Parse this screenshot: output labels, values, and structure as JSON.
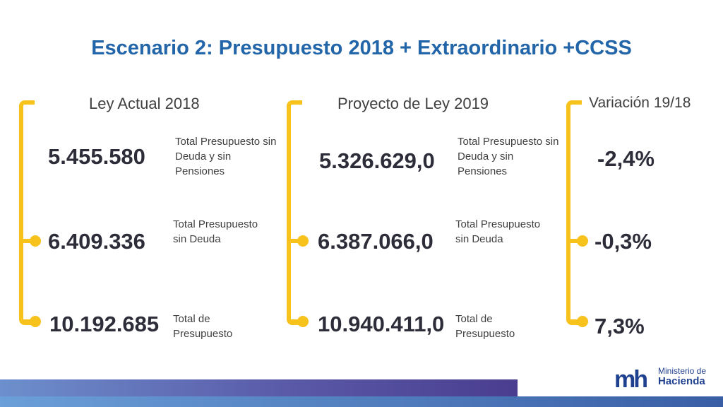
{
  "title": "Escenario 2: Presupuesto 2018 + Extraordinario +CCSS",
  "columns": [
    {
      "heading": "Ley Actual  2018",
      "rows": [
        {
          "value": "5.455.580",
          "label": "Total Presupuesto sin Deuda y sin Pensiones"
        },
        {
          "value": "6.409.336",
          "label": "Total Presupuesto sin Deuda"
        },
        {
          "value": "10.192.685",
          "label": "Total de Presupuesto"
        }
      ]
    },
    {
      "heading": "Proyecto de Ley 2019",
      "rows": [
        {
          "value": "5.326.629,0",
          "label": "Total Presupuesto sin Deuda y sin Pensiones"
        },
        {
          "value": "6.387.066,0",
          "label": "Total Presupuesto sin Deuda"
        },
        {
          "value": "10.940.411,0",
          "label": "Total de Presupuesto"
        }
      ]
    },
    {
      "heading": "Variación 19/18",
      "rows": [
        {
          "value": "-2,4%"
        },
        {
          "value": "-0,3%"
        },
        {
          "value": "7,3%"
        }
      ]
    }
  ],
  "logo": {
    "mark": "mh",
    "line1": "Ministerio de",
    "line2": "Hacienda"
  },
  "colors": {
    "title": "#2265a8",
    "bracket": "#f7c21b",
    "logo": "#1f3f8f"
  }
}
